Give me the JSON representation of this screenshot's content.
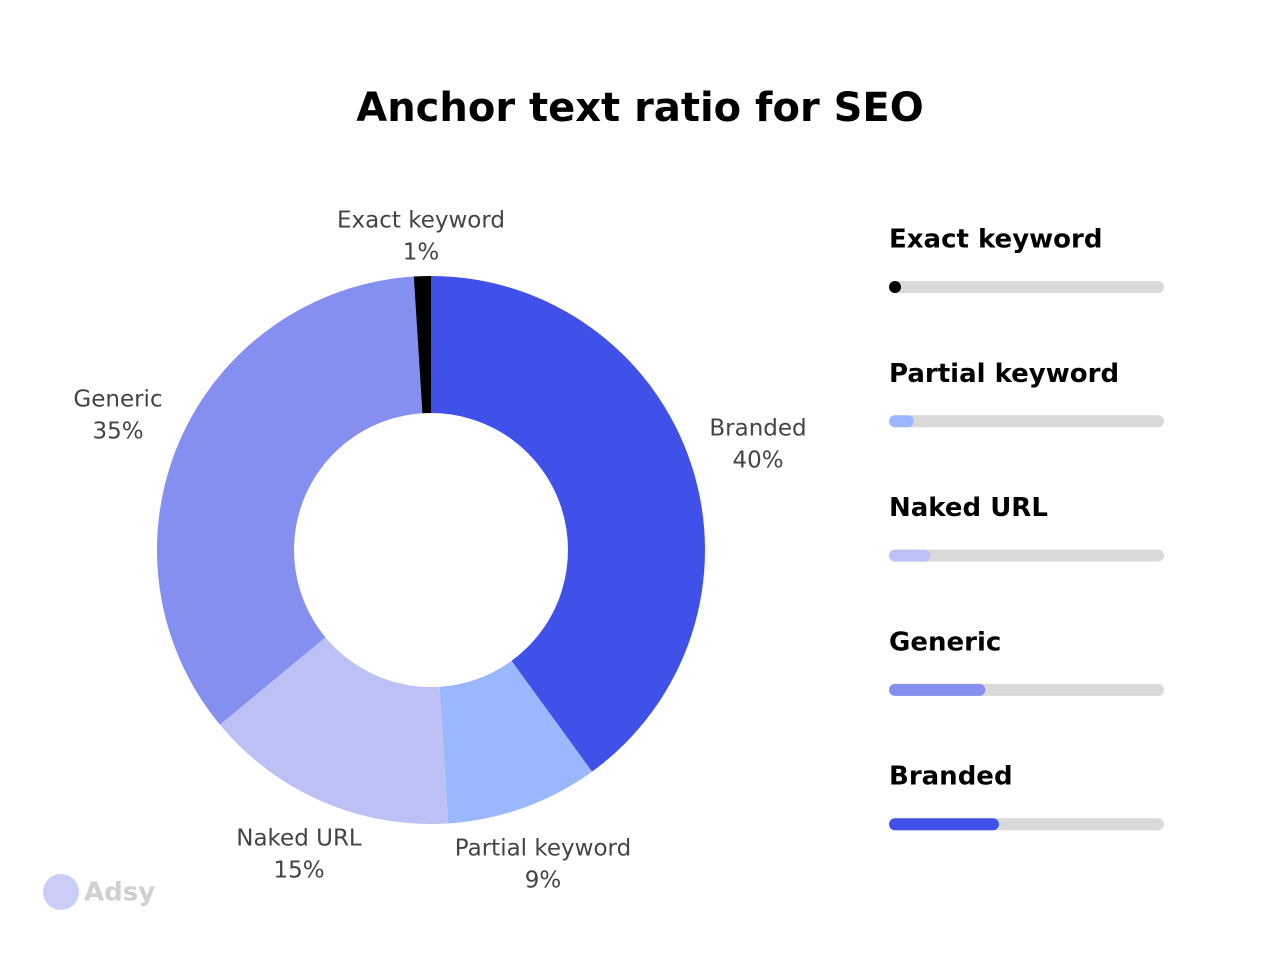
{
  "chart_data": {
    "type": "donut",
    "title": "Anchor text ratio for SEO",
    "categories": [
      "Branded",
      "Partial keyword",
      "Naked URL",
      "Generic",
      "Exact keyword"
    ],
    "values": [
      40,
      9,
      15,
      35,
      1
    ],
    "value_labels": [
      "40%",
      "9%",
      "15%",
      "35%",
      "1%"
    ],
    "colors": [
      "#3f51e8",
      "#9bb8ff",
      "#bcc0f4",
      "#858ff0",
      "#000000"
    ]
  },
  "watermark": "Adsy"
}
